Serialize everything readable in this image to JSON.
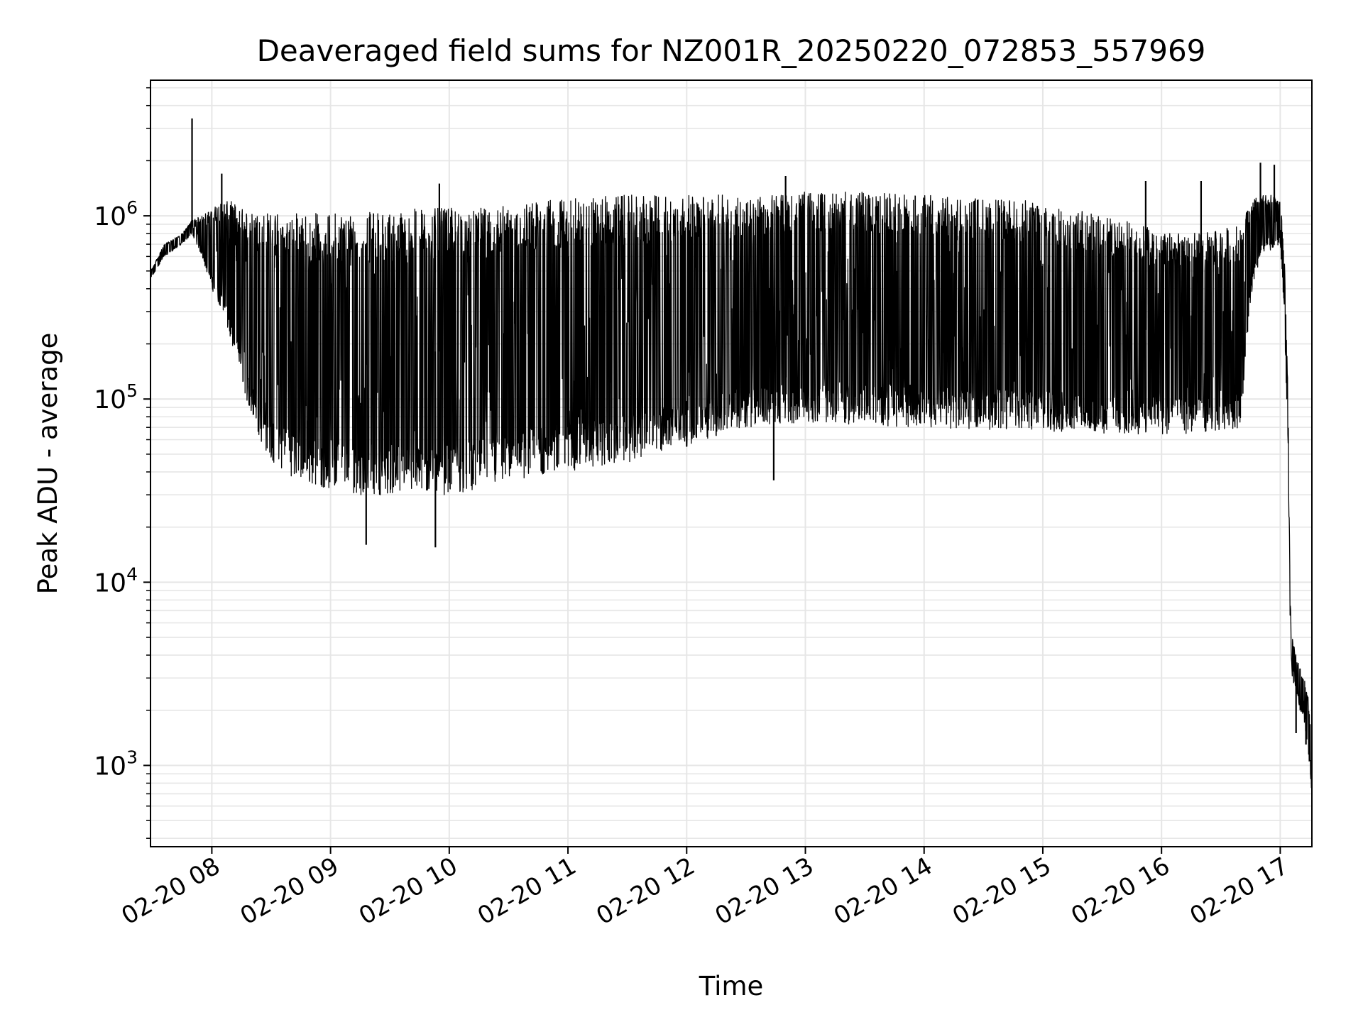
{
  "chart_data": {
    "type": "line",
    "title": "Deaveraged field sums for NZ001R_20250220_072853_557969",
    "xlabel": "Time",
    "ylabel": "Peak ADU - average",
    "xscale": "time",
    "yscale": "log",
    "xlim": [
      "2025-02-20 07:29",
      "2025-02-20 17:16"
    ],
    "ylim": [
      360,
      5500000
    ],
    "grid": true,
    "x_ticks": [
      {
        "at": "2025-02-20 08:00",
        "label": "02-20 08"
      },
      {
        "at": "2025-02-20 09:00",
        "label": "02-20 09"
      },
      {
        "at": "2025-02-20 10:00",
        "label": "02-20 10"
      },
      {
        "at": "2025-02-20 11:00",
        "label": "02-20 11"
      },
      {
        "at": "2025-02-20 12:00",
        "label": "02-20 12"
      },
      {
        "at": "2025-02-20 13:00",
        "label": "02-20 13"
      },
      {
        "at": "2025-02-20 14:00",
        "label": "02-20 14"
      },
      {
        "at": "2025-02-20 15:00",
        "label": "02-20 15"
      },
      {
        "at": "2025-02-20 16:00",
        "label": "02-20 16"
      },
      {
        "at": "2025-02-20 17:00",
        "label": "02-20 17"
      }
    ],
    "y_ticks": [
      {
        "value": 1000,
        "base": "10",
        "exp": "3"
      },
      {
        "value": 10000,
        "base": "10",
        "exp": "4"
      },
      {
        "value": 100000,
        "base": "10",
        "exp": "5"
      },
      {
        "value": 1000000,
        "base": "10",
        "exp": "6"
      }
    ],
    "series": [
      {
        "color": "#000000",
        "envelope": {
          "note_type": "hi-lo band of oscillating series",
          "x": [
            "2025-02-20 07:29",
            "2025-02-20 07:36",
            "2025-02-20 07:45",
            "2025-02-20 07:50",
            "2025-02-20 07:55",
            "2025-02-20 08:00",
            "2025-02-20 08:05",
            "2025-02-20 08:10",
            "2025-02-20 08:15",
            "2025-02-20 08:20",
            "2025-02-20 08:30",
            "2025-02-20 08:45",
            "2025-02-20 09:00",
            "2025-02-20 09:15",
            "2025-02-20 09:30",
            "2025-02-20 09:45",
            "2025-02-20 10:00",
            "2025-02-20 10:15",
            "2025-02-20 10:30",
            "2025-02-20 10:45",
            "2025-02-20 11:00",
            "2025-02-20 11:30",
            "2025-02-20 12:00",
            "2025-02-20 12:30",
            "2025-02-20 13:00",
            "2025-02-20 13:30",
            "2025-02-20 14:00",
            "2025-02-20 14:30",
            "2025-02-20 15:00",
            "2025-02-20 15:30",
            "2025-02-20 16:00",
            "2025-02-20 16:20",
            "2025-02-20 16:40",
            "2025-02-20 16:45",
            "2025-02-20 16:50",
            "2025-02-20 16:55",
            "2025-02-20 17:00",
            "2025-02-20 17:02",
            "2025-02-20 17:04",
            "2025-02-20 17:05",
            "2025-02-20 17:06",
            "2025-02-20 17:08",
            "2025-02-20 17:10",
            "2025-02-20 17:12",
            "2025-02-20 17:14",
            "2025-02-20 17:16"
          ],
          "low": [
            450000,
            600000,
            700000,
            800000,
            600000,
            400000,
            300000,
            200000,
            130000,
            75000,
            45000,
            35000,
            32000,
            30000,
            30000,
            30000,
            30000,
            32000,
            35000,
            38000,
            40000,
            45000,
            55000,
            70000,
            75000,
            72000,
            70000,
            68000,
            66000,
            64000,
            64000,
            64000,
            70000,
            350000,
            600000,
            650000,
            700000,
            300000,
            50000,
            6000,
            3000,
            2500,
            2000,
            1800,
            1200,
            700
          ],
          "high": [
            500000,
            700000,
            800000,
            950000,
            1000000,
            1100000,
            1200000,
            1200000,
            1100000,
            1050000,
            1050000,
            1050000,
            1050000,
            1050000,
            1050000,
            1100000,
            1100000,
            1100000,
            1150000,
            1200000,
            1250000,
            1300000,
            1300000,
            1300000,
            1350000,
            1350000,
            1300000,
            1250000,
            1200000,
            1000000,
            850000,
            800000,
            900000,
            1200000,
            1300000,
            1300000,
            1200000,
            700000,
            100000,
            8000,
            5000,
            4000,
            3500,
            3000,
            2500,
            1500
          ]
        },
        "spikes": [
          {
            "x": "2025-02-20 07:50",
            "y": 3400000
          },
          {
            "x": "2025-02-20 08:05",
            "y": 1700000
          },
          {
            "x": "2025-02-20 09:55",
            "y": 1500000
          },
          {
            "x": "2025-02-20 12:50",
            "y": 1650000
          },
          {
            "x": "2025-02-20 15:52",
            "y": 1550000
          },
          {
            "x": "2025-02-20 16:20",
            "y": 1550000
          },
          {
            "x": "2025-02-20 16:50",
            "y": 1950000
          },
          {
            "x": "2025-02-20 16:57",
            "y": 1900000
          },
          {
            "x": "2025-02-20 09:18",
            "y": 16000
          },
          {
            "x": "2025-02-20 09:53",
            "y": 15500
          },
          {
            "x": "2025-02-20 12:44",
            "y": 36000
          },
          {
            "x": "2025-02-20 17:08",
            "y": 1500
          },
          {
            "x": "2025-02-20 17:13",
            "y": 1300
          }
        ]
      }
    ]
  }
}
